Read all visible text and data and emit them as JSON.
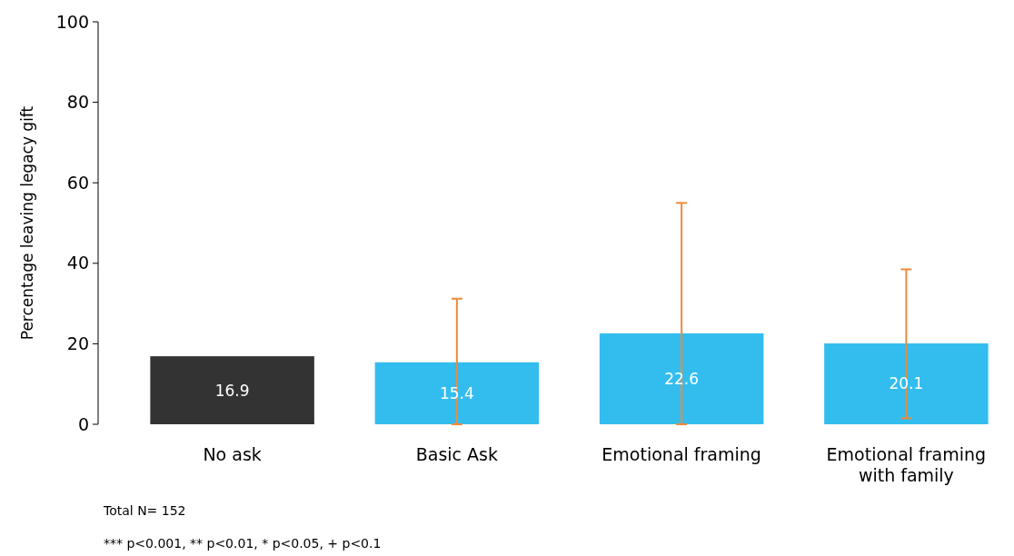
{
  "chart_data": {
    "type": "bar",
    "ylabel": "Percentage leaving legacy gift",
    "categories": [
      "No ask",
      "Basic Ask",
      "Emotional framing",
      "Emotional framing with family"
    ],
    "values": [
      16.9,
      15.4,
      22.6,
      20.1
    ],
    "colors": [
      "#333333",
      "#33bdef",
      "#33bdef",
      "#33bdef"
    ],
    "errors": [
      null,
      [
        0,
        31.2
      ],
      [
        0,
        55
      ],
      [
        1.5,
        38.5
      ]
    ],
    "ylim": [
      0,
      100
    ],
    "yticks": [
      0,
      20,
      40,
      60,
      80,
      100
    ],
    "grid": false,
    "data_labels": true,
    "annotations": [
      "Total N= 152",
      "*** p<0.001, ** p<0.01,  * p<0.05, + p<0.1"
    ]
  }
}
